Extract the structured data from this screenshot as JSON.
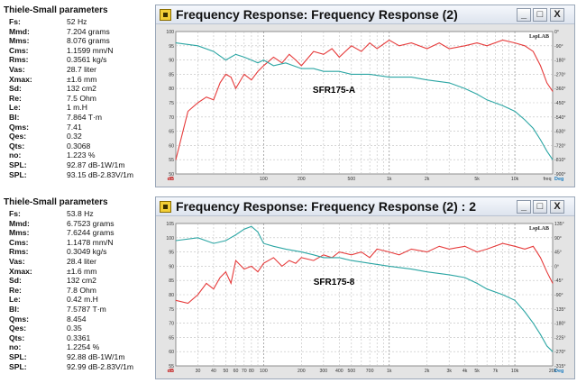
{
  "panels": [
    {
      "params_title": "Thiele-Small parameters",
      "params": [
        {
          "name": "Fs:",
          "value": "52 Hz"
        },
        {
          "name": "Mmd:",
          "value": "7.204 grams"
        },
        {
          "name": "Mms:",
          "value": "8.076 grams"
        },
        {
          "name": "Cms:",
          "value": "1.1599 mm/N"
        },
        {
          "name": "Rms:",
          "value": "0.3561 kg/s"
        },
        {
          "name": "Vas:",
          "value": "28.7 liter"
        },
        {
          "name": "Xmax:",
          "value": "±1.6 mm"
        },
        {
          "name": "Sd:",
          "value": "132 cm2"
        },
        {
          "name": "Re:",
          "value": "7.5 Ohm"
        },
        {
          "name": "Le:",
          "value": "1 m.H"
        },
        {
          "name": "Bl:",
          "value": "7.864 T·m"
        },
        {
          "name": "Qms:",
          "value": "7.41"
        },
        {
          "name": "Qes:",
          "value": "0.32"
        },
        {
          "name": "Qts:",
          "value": "0.3068"
        },
        {
          "name": "no:",
          "value": "1.223 %"
        },
        {
          "name": "SPL:",
          "value": "92.87 dB-1W/1m"
        },
        {
          "name": "SPL:",
          "value": "93.15 dB-2.83V/1m"
        }
      ],
      "window_title": "Frequency Response: Frequency Response (2)",
      "buttons": {
        "minimize": "_",
        "maximize": "□",
        "close": "X"
      },
      "brand": "LspLAB",
      "footer_note": "",
      "chart_data": {
        "type": "line",
        "annotation": "SFR175-A",
        "x_scale": "log",
        "xlim": [
          20,
          20000
        ],
        "x_ticks": [
          "100",
          "200",
          "500",
          "1k",
          "2k",
          "5k",
          "10k",
          "freq"
        ],
        "y_left": {
          "label": "",
          "ticks": [
            "100",
            "95",
            "90",
            "85",
            "80",
            "75",
            "70",
            "65",
            "60",
            "55",
            "50"
          ],
          "ylim": [
            50,
            100
          ],
          "unit": "dB"
        },
        "y_right": {
          "ticks": [
            "0°",
            "-90°",
            "-180°",
            "-270°",
            "-360°",
            "-450°",
            "-540°",
            "-630°",
            "-720°",
            "-810°",
            "-900°"
          ],
          "unit": "Deg"
        },
        "grid": true,
        "series": [
          {
            "color": "#e63b3b",
            "x": [
              20,
              25,
              30,
              35,
              40,
              45,
              50,
              55,
              60,
              70,
              80,
              90,
              100,
              120,
              140,
              160,
              180,
              200,
              250,
              300,
              350,
              400,
              500,
              600,
              700,
              800,
              1000,
              1200,
              1500,
              2000,
              2500,
              3000,
              4000,
              5000,
              6000,
              8000,
              10000,
              12000,
              14000,
              16000,
              18000,
              20000
            ],
            "y": [
              55,
              72,
              75,
              77,
              76,
              82,
              85,
              84,
              80,
              85,
              83,
              86,
              88,
              91,
              89,
              92,
              90,
              88,
              93,
              92,
              94,
              91,
              95,
              93,
              96,
              94,
              97,
              95,
              96,
              94,
              96,
              94,
              95,
              96,
              95,
              97,
              96,
              95,
              93,
              88,
              82,
              79
            ]
          },
          {
            "color": "#2ca6a4",
            "x": [
              20,
              30,
              40,
              50,
              60,
              70,
              80,
              90,
              100,
              120,
              150,
              200,
              250,
              300,
              400,
              500,
              700,
              1000,
              1500,
              2000,
              3000,
              4000,
              5000,
              6000,
              8000,
              10000,
              12000,
              14000,
              16000,
              18000,
              20000
            ],
            "y": [
              96,
              95,
              93,
              90,
              92,
              91,
              90,
              89,
              90,
              88,
              89,
              87,
              87,
              86,
              86,
              85,
              85,
              84,
              84,
              83,
              82,
              80,
              78,
              76,
              74,
              72,
              69,
              66,
              62,
              58,
              55
            ]
          }
        ]
      }
    },
    {
      "params_title": "Thiele-Small parameters",
      "params": [
        {
          "name": "Fs:",
          "value": "53.8 Hz"
        },
        {
          "name": "Mmd:",
          "value": "6.7523 grams"
        },
        {
          "name": "Mms:",
          "value": "7.6244 grams"
        },
        {
          "name": "Cms:",
          "value": "1.1478 mm/N"
        },
        {
          "name": "Rms:",
          "value": "0.3049 kg/s"
        },
        {
          "name": "Vas:",
          "value": "28.4 liter"
        },
        {
          "name": "Xmax:",
          "value": "±1.6 mm"
        },
        {
          "name": "Sd:",
          "value": "132 cm2"
        },
        {
          "name": "Re:",
          "value": "7.8 Ohm"
        },
        {
          "name": "Le:",
          "value": "0.42 m.H"
        },
        {
          "name": "Bl:",
          "value": "7.5787 T·m"
        },
        {
          "name": "Qms:",
          "value": "8.454"
        },
        {
          "name": "Qes:",
          "value": "0.35"
        },
        {
          "name": "Qts:",
          "value": "0.3361"
        },
        {
          "name": "no:",
          "value": "1.2254 %"
        },
        {
          "name": "SPL:",
          "value": "92.88 dB-1W/1m"
        },
        {
          "name": "SPL:",
          "value": "92.99 dB-2.83V/1m"
        }
      ],
      "window_title": "Frequency Response: Frequency Response (2) : 2",
      "buttons": {
        "minimize": "_",
        "maximize": "□",
        "close": "X"
      },
      "brand": "LspLAB",
      "footer_note": "",
      "chart_data": {
        "type": "line",
        "annotation": "SFR175-8",
        "x_scale": "log",
        "xlim": [
          20,
          20000
        ],
        "x_ticks": [
          "30",
          "40",
          "50",
          "60",
          "70",
          "80",
          "100",
          "200",
          "300",
          "400",
          "500",
          "700",
          "1k",
          "2k",
          "3k",
          "4k",
          "5k",
          "7k",
          "10k",
          "20k"
        ],
        "y_left": {
          "label": "",
          "ticks": [
            "105",
            "100",
            "95",
            "90",
            "85",
            "80",
            "75",
            "70",
            "65",
            "60",
            "55"
          ],
          "ylim": [
            55,
            105
          ],
          "unit": "dB"
        },
        "y_right": {
          "ticks": [
            "135°",
            "90°",
            "45°",
            "0°",
            "-45°",
            "-90°",
            "-135°",
            "-180°",
            "-225°",
            "-270°",
            "-315°"
          ],
          "unit": "Deg"
        },
        "grid": true,
        "series": [
          {
            "color": "#e63b3b",
            "x": [
              20,
              25,
              30,
              35,
              40,
              45,
              50,
              55,
              60,
              70,
              80,
              90,
              100,
              120,
              140,
              160,
              180,
              200,
              250,
              300,
              350,
              400,
              500,
              600,
              700,
              800,
              1000,
              1200,
              1500,
              2000,
              2500,
              3000,
              4000,
              5000,
              6000,
              8000,
              10000,
              12000,
              14000,
              16000,
              18000,
              20000
            ],
            "y": [
              78,
              77,
              80,
              84,
              82,
              86,
              88,
              84,
              92,
              89,
              90,
              88,
              91,
              93,
              90,
              92,
              91,
              93,
              92,
              94,
              93,
              95,
              94,
              95,
              93,
              96,
              95,
              94,
              96,
              95,
              97,
              96,
              97,
              95,
              96,
              98,
              97,
              96,
              97,
              93,
              88,
              84
            ]
          },
          {
            "color": "#2ca6a4",
            "x": [
              20,
              30,
              40,
              50,
              60,
              70,
              80,
              90,
              100,
              120,
              150,
              200,
              250,
              300,
              400,
              500,
              700,
              1000,
              1500,
              2000,
              3000,
              4000,
              5000,
              6000,
              8000,
              10000,
              12000,
              14000,
              16000,
              18000,
              20000
            ],
            "y": [
              99,
              100,
              98,
              99,
              101,
              103,
              104,
              102,
              98,
              97,
              96,
              95,
              94,
              93,
              93,
              92,
              91,
              90,
              89,
              88,
              87,
              86,
              84,
              82,
              80,
              78,
              74,
              70,
              66,
              62,
              60
            ]
          }
        ]
      }
    }
  ]
}
